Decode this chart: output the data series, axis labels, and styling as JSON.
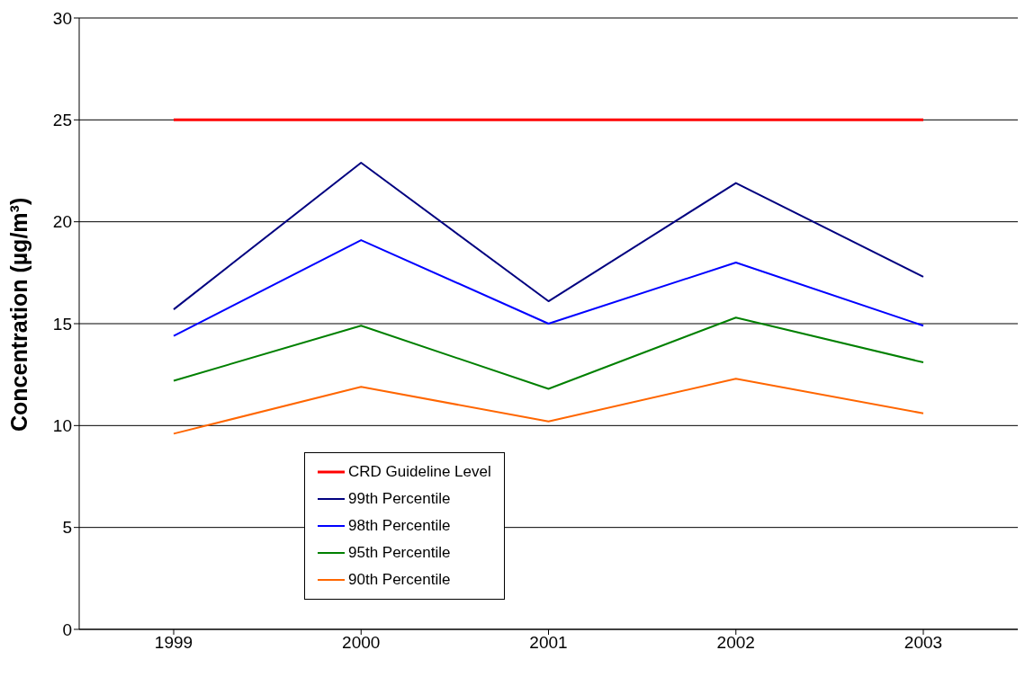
{
  "chart_data": {
    "type": "line",
    "ylabel": "Concentration (µg/m³)",
    "categories": [
      "1999",
      "2000",
      "2001",
      "2002",
      "2003"
    ],
    "series": [
      {
        "name": "CRD Guideline Level",
        "color": "#ff0000",
        "values": [
          25,
          25,
          25,
          25,
          25
        ]
      },
      {
        "name": "99th Percentile",
        "color": "#000080",
        "values": [
          15.7,
          22.9,
          16.1,
          21.9,
          17.3
        ]
      },
      {
        "name": "98th Percentile",
        "color": "#0000ff",
        "values": [
          14.4,
          19.1,
          15.0,
          18.0,
          14.9
        ]
      },
      {
        "name": "95th Percentile",
        "color": "#008000",
        "values": [
          12.2,
          14.9,
          11.8,
          15.3,
          13.1
        ]
      },
      {
        "name": "90th Percentile",
        "color": "#ff6600",
        "values": [
          9.6,
          11.9,
          10.2,
          12.3,
          10.6
        ]
      }
    ],
    "ylim": [
      0,
      30
    ],
    "yticks": [
      0,
      5,
      10,
      15,
      20,
      25,
      30
    ],
    "grid": "y",
    "legend": "bottom left",
    "marker": "none",
    "line_style": "solid"
  }
}
